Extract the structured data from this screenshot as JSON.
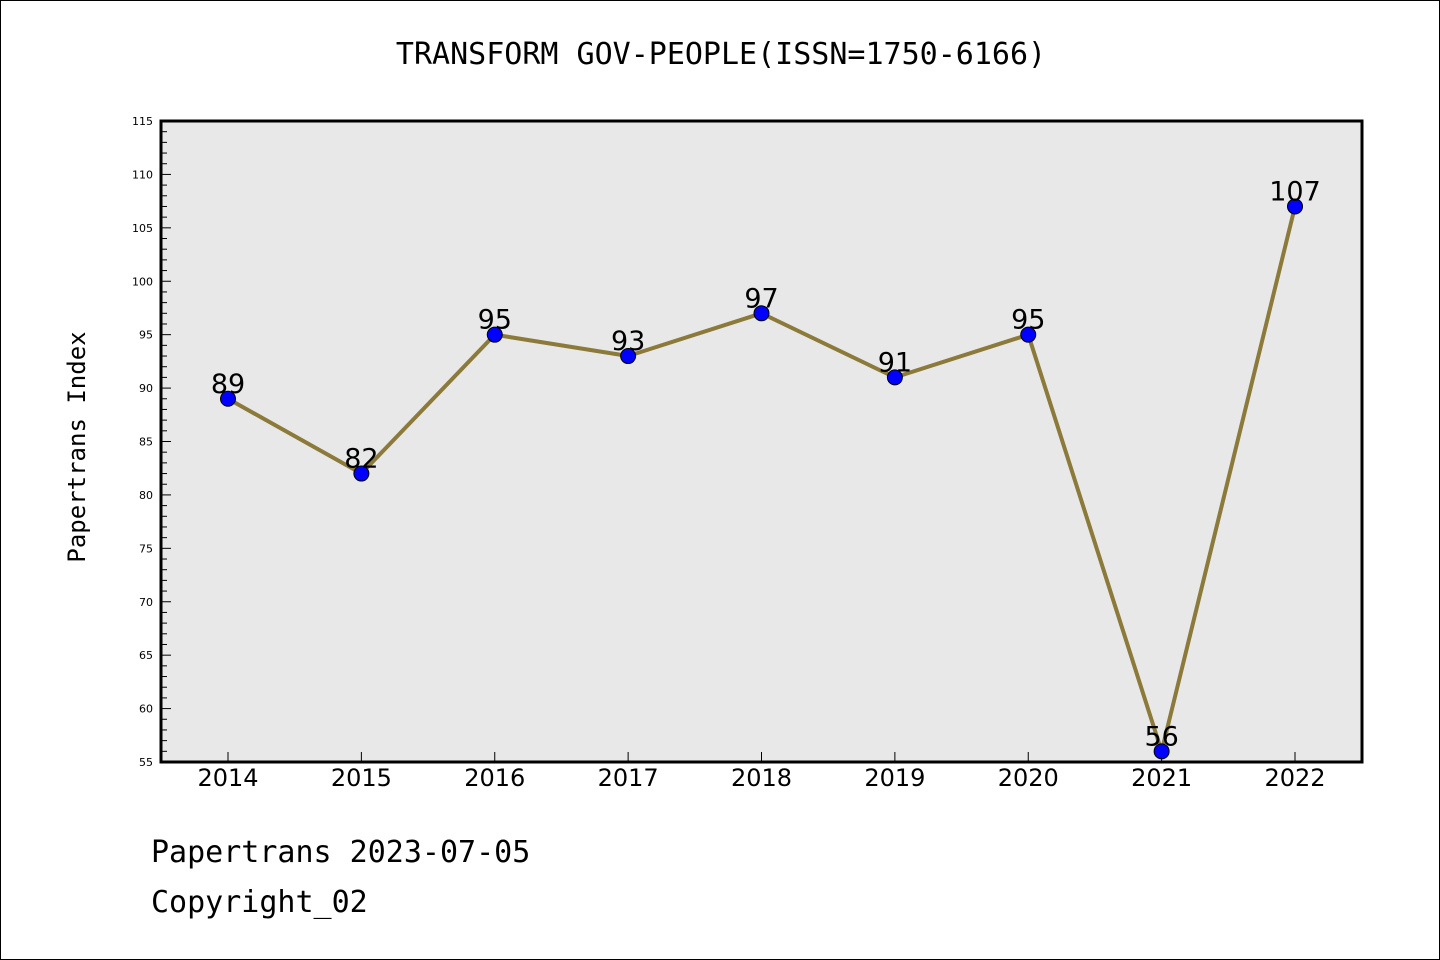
{
  "chart_data": {
    "type": "line",
    "title": "TRANSFORM GOV-PEOPLE(ISSN=1750-6166)",
    "xlabel": "",
    "ylabel": "Papertrans Index",
    "categories": [
      "2014",
      "2015",
      "2016",
      "2017",
      "2018",
      "2019",
      "2020",
      "2021",
      "2022"
    ],
    "series": [
      {
        "values": [
          89,
          82,
          95,
          93,
          97,
          91,
          95,
          56,
          107
        ],
        "data_labels": [
          "89",
          "82",
          "95",
          "93",
          "97",
          "91",
          "95",
          "56",
          "107"
        ],
        "line_color": "#8c7a3a",
        "marker_color": "#0000ff"
      }
    ],
    "ylim": [
      55,
      115
    ],
    "y_ticks": [
      "55",
      "60",
      "65",
      "70",
      "75",
      "80",
      "85",
      "90",
      "95",
      "100",
      "105",
      "110",
      "115"
    ],
    "plot_background": "#e8e8e8",
    "grid": false,
    "legend": "none"
  },
  "footer": {
    "date_text": "Papertrans 2023-07-05",
    "copyright_text": "Copyright_02"
  }
}
